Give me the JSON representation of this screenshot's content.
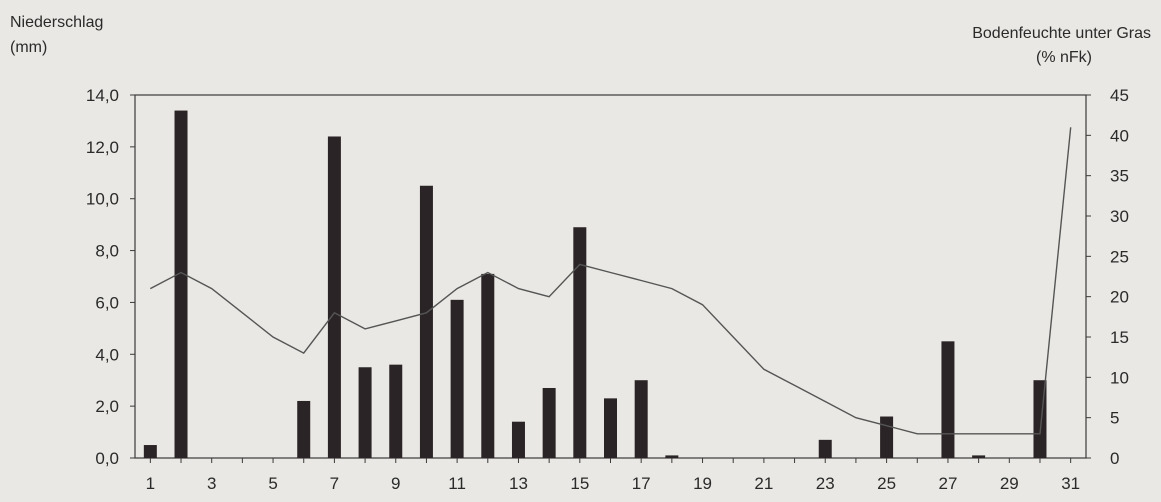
{
  "chart_data": {
    "type": "bar+line",
    "left_axis_label_line1": "Niederschlag",
    "left_axis_label_line2": "(mm)",
    "right_axis_label_line1": "Bodenfeuchte unter Gras",
    "right_axis_label_line2": "(% nFk)",
    "x": [
      1,
      2,
      3,
      4,
      5,
      6,
      7,
      8,
      9,
      10,
      11,
      12,
      13,
      14,
      15,
      16,
      17,
      18,
      19,
      20,
      21,
      22,
      23,
      24,
      25,
      26,
      27,
      28,
      29,
      30,
      31
    ],
    "x_tick_labels": [
      "1",
      "3",
      "5",
      "7",
      "9",
      "11",
      "13",
      "15",
      "17",
      "19",
      "21",
      "23",
      "25",
      "27",
      "29",
      "31"
    ],
    "y_left_ticks": [
      "0,0",
      "2,0",
      "4,0",
      "6,0",
      "8,0",
      "10,0",
      "12,0",
      "14,0"
    ],
    "y_right_ticks": [
      "0",
      "5",
      "10",
      "15",
      "20",
      "25",
      "30",
      "35",
      "40",
      "45"
    ],
    "ylim_left": [
      0,
      14
    ],
    "ylim_right": [
      0,
      45
    ],
    "bars_precipitation_mm": [
      0.5,
      13.4,
      0,
      0,
      0,
      2.2,
      12.4,
      3.5,
      3.6,
      10.5,
      6.1,
      7.1,
      1.4,
      2.7,
      8.9,
      2.3,
      3.0,
      0.1,
      0,
      0,
      0,
      0,
      0.7,
      0,
      1.6,
      0,
      4.5,
      0.1,
      0,
      3.0,
      0
    ],
    "line_soil_moisture_pct": [
      21,
      23,
      21,
      18,
      15,
      13,
      18,
      16,
      17,
      18,
      21,
      23,
      21,
      20,
      24,
      23,
      22,
      21,
      19,
      15,
      11,
      9,
      7,
      5,
      4,
      3,
      3,
      3,
      3,
      3,
      41
    ],
    "bar_color": "#2b2426",
    "line_color": "#555555",
    "grid": false
  }
}
